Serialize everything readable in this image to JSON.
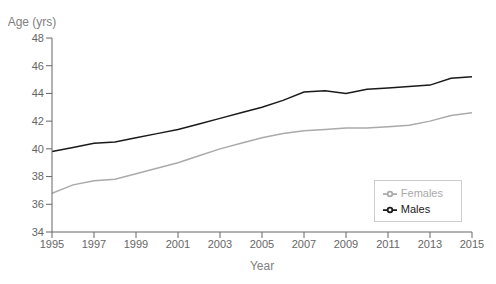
{
  "chart_data": {
    "type": "line",
    "xlabel": "Year",
    "ylabel": "Age (yrs)",
    "x": [
      1995,
      1996,
      1997,
      1998,
      1999,
      2000,
      2001,
      2002,
      2003,
      2004,
      2005,
      2006,
      2007,
      2008,
      2009,
      2010,
      2011,
      2012,
      2013,
      2014,
      2015
    ],
    "series": [
      {
        "name": "Males",
        "color": "#1a1a1a",
        "values": [
          39.8,
          40.1,
          40.4,
          40.5,
          40.8,
          41.1,
          41.4,
          41.8,
          42.2,
          42.6,
          43.0,
          43.5,
          44.1,
          44.2,
          44.0,
          44.3,
          44.4,
          44.5,
          44.6,
          45.1,
          45.2
        ]
      },
      {
        "name": "Females",
        "color": "#aaaaaa",
        "values": [
          36.8,
          37.4,
          37.7,
          37.8,
          38.2,
          38.6,
          39.0,
          39.5,
          40.0,
          40.4,
          40.8,
          41.1,
          41.3,
          41.4,
          41.5,
          41.5,
          41.6,
          41.7,
          42.0,
          42.4,
          42.6
        ]
      }
    ],
    "xlim": [
      1995,
      2015
    ],
    "xticks": [
      1995,
      1997,
      1999,
      2001,
      2003,
      2005,
      2007,
      2009,
      2011,
      2013,
      2015
    ],
    "ylim": [
      34,
      48
    ],
    "yticks": [
      34,
      36,
      38,
      40,
      42,
      44,
      46,
      48
    ],
    "grid": false,
    "legend": "lower right"
  }
}
